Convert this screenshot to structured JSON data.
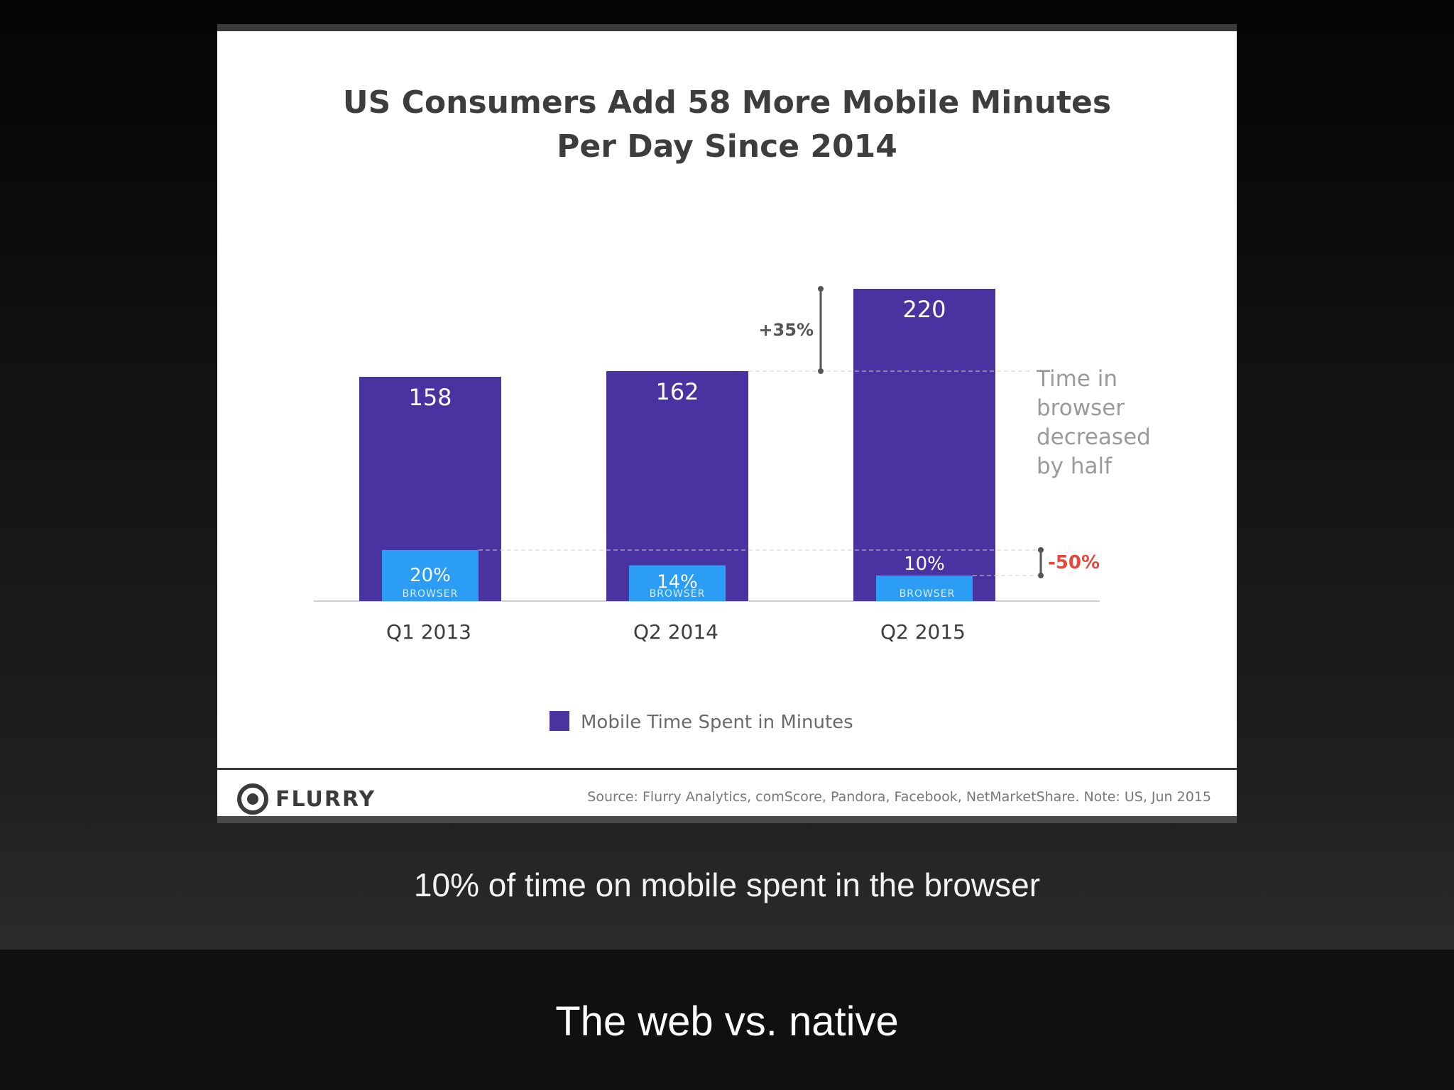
{
  "chart_data": {
    "type": "bar",
    "title": "US Consumers Add 58 More Mobile Minutes\nPer Day Since 2014",
    "categories": [
      "Q1 2013",
      "Q2 2014",
      "Q2 2015"
    ],
    "series": [
      {
        "name": "Mobile Time Spent in Minutes",
        "values": [
          158,
          162,
          220
        ]
      }
    ],
    "value_labels": [
      "158",
      "162",
      "220"
    ],
    "browser_share": [
      20,
      14,
      10
    ],
    "browser_labels": [
      "20%",
      "14%",
      "10%"
    ],
    "browser_word": "BROWSER",
    "growth_annotation": "+35%",
    "browser_change_annotation": "-50%",
    "side_note": [
      "Time in",
      "browser",
      "decreased",
      "by half"
    ],
    "legend": {
      "label": "Mobile Time Spent in Minutes",
      "position": "bottom-center"
    },
    "ylim": [
      0,
      220
    ],
    "grid": false,
    "colors": {
      "total": "#4833a0",
      "browser": "#2b9df4",
      "annotation": "#555555",
      "negative": "#e24b3b",
      "side_note": "#9a9a9a"
    }
  },
  "footer": {
    "brand": "FLURRY",
    "source": "Source: Flurry Analytics, comScore, Pandora, Facebook, NetMarketShare. Note: US, Jun 2015"
  },
  "caption": "10% of time on mobile spent in the browser",
  "slide_title": "The web vs. native"
}
